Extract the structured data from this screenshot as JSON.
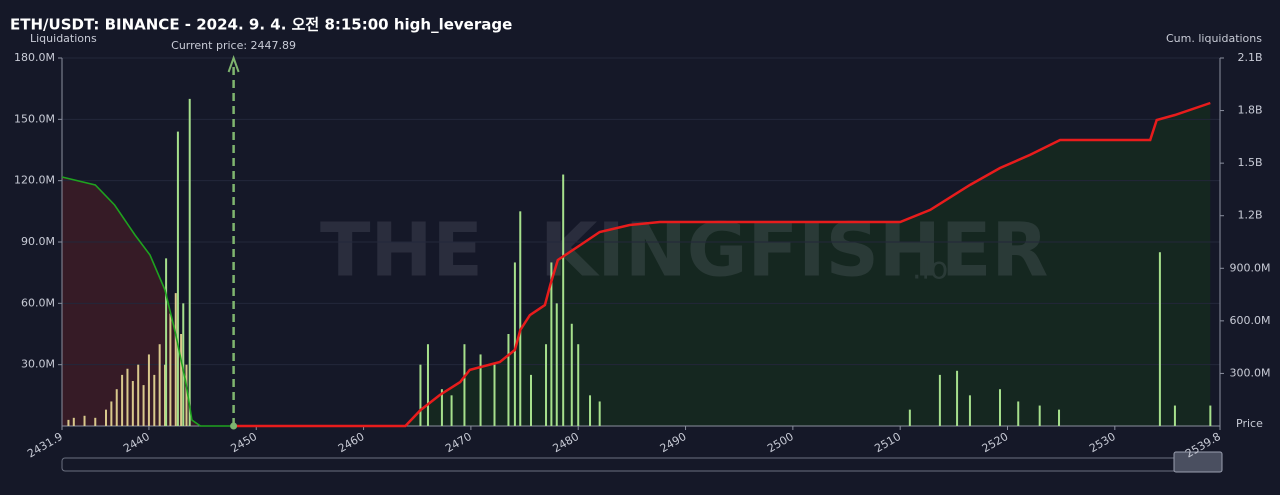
{
  "chart_data": {
    "type": "bar",
    "title": "ETH/USDT: BINANCE - 2024. 9. 4. 오전 8:15:00 high_leverage",
    "y_label": "Liquidations",
    "y2_label": "Cum. liquidations",
    "x_label": "Price",
    "annotation": "Current price: 2447.89",
    "current_price": 2447.89,
    "watermark": [
      "THE",
      "KINGFISHER",
      ".io"
    ],
    "xlim": [
      2431.9,
      2539.8
    ],
    "xticks": [
      2431.9,
      2440,
      2450,
      2460,
      2470,
      2480,
      2490,
      2500,
      2510,
      2520,
      2530,
      2539.8
    ],
    "ylim": [
      0,
      180000000
    ],
    "yticks": [
      {
        "value": 30000000,
        "label": "30.0M"
      },
      {
        "value": 60000000,
        "label": "60.0M"
      },
      {
        "value": 90000000,
        "label": "90.0M"
      },
      {
        "value": 120000000,
        "label": "120.0M"
      },
      {
        "value": 150000000,
        "label": "150.0M"
      },
      {
        "value": 180000000,
        "label": "180.0M"
      }
    ],
    "y2lim": [
      0,
      2100000000
    ],
    "y2ticks": [
      {
        "value": 300000000,
        "label": "300.0M"
      },
      {
        "value": 600000000,
        "label": "600.0M"
      },
      {
        "value": 900000000,
        "label": "900.0M"
      },
      {
        "value": 1200000000,
        "label": "1.2B"
      },
      {
        "value": 1500000000,
        "label": "1.5B"
      },
      {
        "value": 1800000000,
        "label": "1.8B"
      },
      {
        "value": 2100000000,
        "label": "2.1B"
      }
    ],
    "series": [
      {
        "color": "#d9c98c",
        "x": [
          2432.5,
          2433,
          2434,
          2435,
          2436,
          2436.5,
          2437,
          2437.5,
          2438,
          2438.5,
          2439,
          2439.5,
          2440,
          2440.5,
          2441,
          2441.5,
          2442,
          2442.5,
          2443,
          2443.5
        ],
        "values": [
          3000000,
          4000000,
          5000000,
          4000000,
          8000000,
          12000000,
          18000000,
          25000000,
          28000000,
          22000000,
          30000000,
          20000000,
          35000000,
          25000000,
          40000000,
          30000000,
          55000000,
          65000000,
          45000000,
          30000000
        ]
      },
      {
        "color": "#a6e08c",
        "x": [
          2441.6,
          2442.7,
          2443.2,
          2443.8,
          2465.3,
          2466.0,
          2467.3,
          2468.2,
          2469.4,
          2470.9,
          2472.2,
          2473.5,
          2474.1,
          2474.6,
          2475.6,
          2477.0,
          2477.5,
          2478.0,
          2478.6,
          2479.4,
          2480.0,
          2481.1,
          2482.0,
          2510.9,
          2513.7,
          2515.3,
          2516.5,
          2519.3,
          2521.0,
          2523.0,
          2524.8,
          2534.2,
          2535.6,
          2538.9
        ],
        "values": [
          82000000,
          144000000,
          60000000,
          160000000,
          30000000,
          40000000,
          18000000,
          15000000,
          40000000,
          35000000,
          30000000,
          45000000,
          80000000,
          105000000,
          25000000,
          40000000,
          80000000,
          60000000,
          123000000,
          50000000,
          40000000,
          15000000,
          12000000,
          8000000,
          25000000,
          27000000,
          15000000,
          18000000,
          12000000,
          10000000,
          8000000,
          85000000,
          10000000,
          10000000
        ]
      }
    ],
    "lines": [
      {
        "color": "#1fa21f",
        "fill": "#3a1c26",
        "axis": "y2",
        "x": [
          2431.9,
          2435.0,
          2436.8,
          2438.7,
          2440.1,
          2441.5,
          2442.4,
          2443.4,
          2444.0,
          2444.8,
          2447.8
        ],
        "values": [
          1421000000,
          1375000000,
          1261000000,
          1090000000,
          976000000,
          776000000,
          548000000,
          262000000,
          34000000,
          0,
          0
        ]
      },
      {
        "color": "#e81c1c",
        "fill": "#15291f",
        "axis": "y2",
        "x": [
          2447.8,
          2463.9,
          2465.3,
          2467.1,
          2469.0,
          2469.9,
          2472.7,
          2474.1,
          2474.6,
          2475.5,
          2476.9,
          2477.4,
          2478.1,
          2480.2,
          2482.0,
          2484.8,
          2487.6,
          2510.0,
          2512.8,
          2516.5,
          2519.3,
          2522.1,
          2524.9,
          2533.3,
          2533.9,
          2535.6,
          2538.9
        ],
        "values": [
          0,
          0,
          91000000,
          177000000,
          251000000,
          320000000,
          365000000,
          434000000,
          548000000,
          633000000,
          690000000,
          805000000,
          947000000,
          1033000000,
          1107000000,
          1147000000,
          1164000000,
          1164000000,
          1233000000,
          1375000000,
          1472000000,
          1547000000,
          1632000000,
          1632000000,
          1746000000,
          1775000000,
          1843000000
        ]
      }
    ],
    "grid": true
  }
}
